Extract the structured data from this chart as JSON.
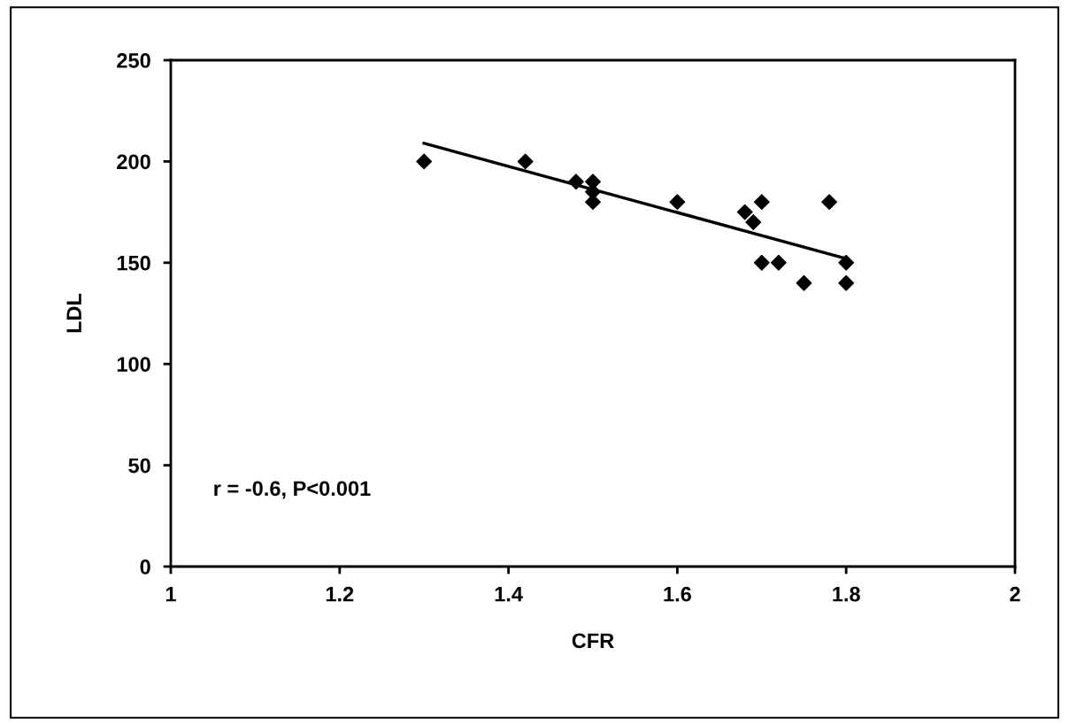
{
  "chart_data": {
    "type": "scatter",
    "xlabel": "CFR",
    "ylabel": "LDL",
    "xlim": [
      1,
      2
    ],
    "xticks": [
      1,
      1.2,
      1.4,
      1.6,
      1.8,
      2
    ],
    "ylim": [
      0,
      250
    ],
    "yticks": [
      0,
      50,
      100,
      150,
      200,
      250
    ],
    "grid": false,
    "legend": false,
    "marker": "diamond",
    "annotations": [
      "r = -0.6, P<0.001"
    ],
    "series": [
      {
        "color": "#000000",
        "x": [
          1.3,
          1.42,
          1.48,
          1.5,
          1.5,
          1.5,
          1.6,
          1.68,
          1.69,
          1.7,
          1.7,
          1.72,
          1.75,
          1.78,
          1.8,
          1.8
        ],
        "values": [
          200,
          200,
          190,
          190,
          185,
          180,
          180,
          175,
          170,
          180,
          150,
          150,
          140,
          180,
          150,
          140
        ]
      },
      {
        "type": "line",
        "color": "#000000",
        "marker": "none",
        "line_style": "solid",
        "x": [
          1.3,
          1.8
        ],
        "values": [
          209,
          152
        ]
      }
    ]
  }
}
